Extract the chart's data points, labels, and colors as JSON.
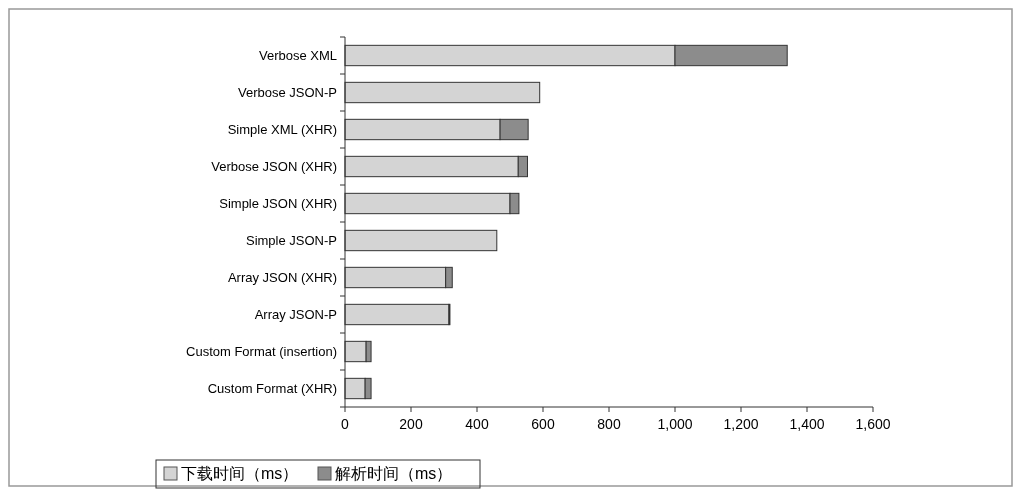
{
  "chart_data": {
    "type": "bar",
    "orientation": "horizontal",
    "stacked": true,
    "categories": [
      "Verbose XML",
      "Verbose JSON-P",
      "Simple XML (XHR)",
      "Verbose JSON (XHR)",
      "Simple JSON (XHR)",
      "Simple JSON-P",
      "Array JSON (XHR)",
      "Array JSON-P",
      "Custom Format (insertion)",
      "Custom Format (XHR)"
    ],
    "series": [
      {
        "name": "下载时间（ms）",
        "color": "#d4d4d4",
        "values": [
          1000,
          590,
          470,
          525,
          500,
          460,
          305,
          315,
          64,
          61
        ]
      },
      {
        "name": "解析时间（ms）",
        "color": "#8c8c8c",
        "values": [
          340,
          0,
          85,
          28,
          27,
          0,
          20,
          3,
          15,
          18
        ]
      }
    ],
    "xlim": [
      0,
      1600
    ],
    "xticks": [
      0,
      {
        "value": 200,
        "label": "200"
      },
      {
        "value": 400,
        "label": "400"
      },
      {
        "value": 600,
        "label": "600"
      },
      {
        "value": 800,
        "label": "800"
      },
      {
        "value": 1000,
        "label": "1,000"
      },
      {
        "value": 1200,
        "label": "1,200"
      },
      {
        "value": 1400,
        "label": "1,400"
      },
      {
        "value": 1600,
        "label": "1,600"
      }
    ],
    "grid": false,
    "legend": "bottom left"
  }
}
